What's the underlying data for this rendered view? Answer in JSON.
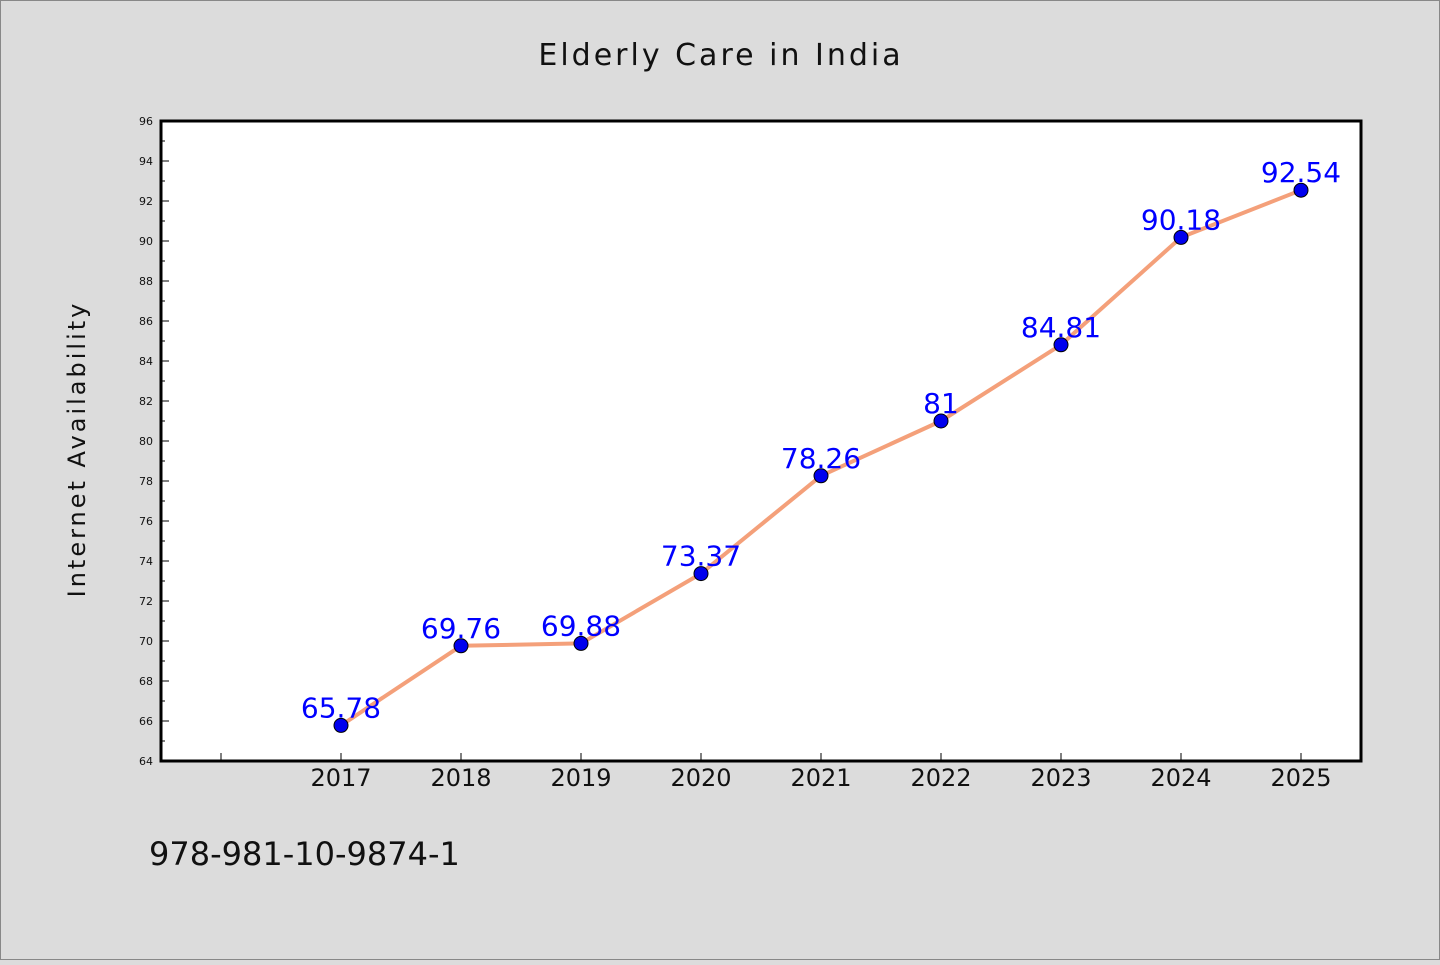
{
  "chart_data": {
    "type": "line",
    "title": "Elderly Care in India",
    "xlabel": "",
    "ylabel": "Internet Availability",
    "categories": [
      "2017",
      "2018",
      "2019",
      "2020",
      "2021",
      "2022",
      "2023",
      "2024",
      "2025"
    ],
    "series": [
      {
        "values": [
          65.78,
          69.76,
          69.88,
          73.37,
          78.26,
          81,
          84.81,
          90.18,
          92.54
        ],
        "data_labels": [
          "65.78",
          "69.76",
          "69.88",
          "73.37",
          "78.26",
          "81",
          "84.81",
          "90.18",
          "92.54"
        ]
      }
    ],
    "ylim": [
      64,
      96
    ],
    "yticks": [
      64,
      66,
      68,
      70,
      72,
      74,
      76,
      78,
      80,
      82,
      84,
      86,
      88,
      90,
      92,
      94,
      96
    ],
    "grid": false,
    "line_color": "#f4a07a",
    "marker_color": "#0000ee",
    "label_color": "#0000ff"
  },
  "footer_text": "978-981-10-9874-1"
}
